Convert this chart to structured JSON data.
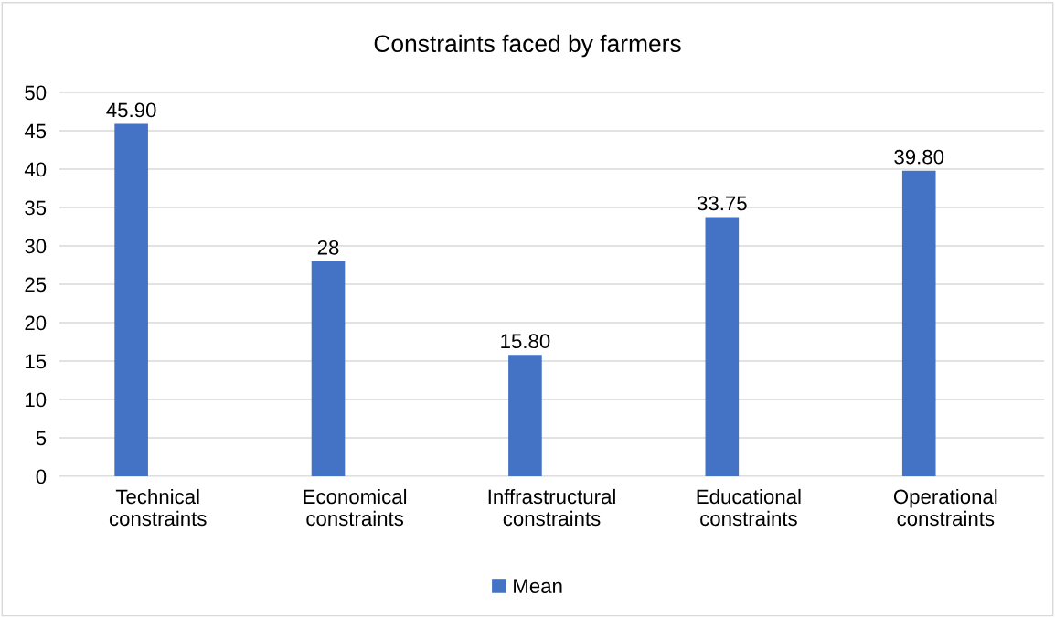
{
  "chart_data": {
    "type": "bar",
    "title": "Constraints faced by farmers",
    "categories": [
      "Technical\nconstraints",
      "Economical\nconstraints",
      "Inffrastructural\nconstraints",
      "Educational\nconstraints",
      "Operational\nconstraints"
    ],
    "series": [
      {
        "name": "Mean",
        "color": "#4472c4",
        "values": [
          45.9,
          28,
          15.8,
          33.75,
          39.8
        ],
        "value_labels": [
          "45.90",
          "28",
          "15.80",
          "33.75",
          "39.80"
        ]
      }
    ],
    "ylim": [
      0,
      50
    ],
    "yticks": [
      0,
      5,
      10,
      15,
      20,
      25,
      30,
      35,
      40,
      45,
      50
    ],
    "grid": "y",
    "legend": "bottom"
  }
}
